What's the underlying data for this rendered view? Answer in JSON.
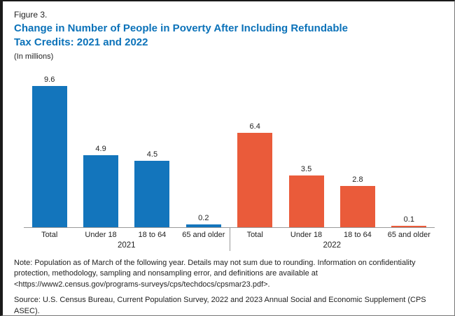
{
  "figure": {
    "label": "Figure 3.",
    "title_line1": "Change in Number of People in Poverty After Including Refundable",
    "title_line2": "Tax Credits: 2021 and 2022",
    "subtitle": "(In millions)",
    "title_color": "#0b72b9"
  },
  "chart_data": {
    "type": "bar",
    "title": "Change in Number of People in Poverty After Including Refundable Tax Credits: 2021 and 2022",
    "units": "millions",
    "categories": [
      "Total",
      "Under 18",
      "18 to 64",
      "65 and older"
    ],
    "series": [
      {
        "name": "2021",
        "color": "#1375bc",
        "values": [
          9.6,
          4.9,
          4.5,
          0.2
        ]
      },
      {
        "name": "2022",
        "color": "#ea5b3a",
        "values": [
          6.4,
          3.5,
          2.8,
          0.1
        ]
      }
    ],
    "ylim": [
      0,
      10
    ],
    "grid": false,
    "legend": "none",
    "value_labels": "above bars, one decimal"
  },
  "notes": {
    "note": "Note: Population as of March of the following year. Details may not sum due to rounding. Information on confidentiality protection, methodology, sampling and nonsampling error, and definitions are available at <https://www2.census.gov/programs-surveys/cps/techdocs/cpsmar23.pdf>.",
    "source": "Source: U.S. Census Bureau, Current Population Survey, 2022 and 2023 Annual Social and Economic Supplement (CPS ASEC)."
  }
}
